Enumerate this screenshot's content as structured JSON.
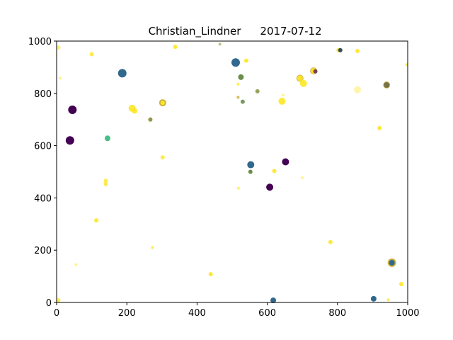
{
  "chart_data": {
    "type": "scatter",
    "title_name": "Christian_Lindner",
    "title_date": "2017-07-12",
    "xlabel": "",
    "ylabel": "",
    "xlim": [
      0,
      1000
    ],
    "ylim": [
      0,
      1000
    ],
    "xticks": [
      "0",
      "200",
      "400",
      "600",
      "800",
      "1000"
    ],
    "yticks": [
      "0",
      "200",
      "400",
      "600",
      "800",
      "1000"
    ],
    "grid": false,
    "points": [
      {
        "x": 5,
        "y": 975,
        "size": 3,
        "color": "#fde725",
        "alpha": 0.6
      },
      {
        "x": 10,
        "y": 858,
        "size": 2,
        "color": "#fde725",
        "alpha": 0.5
      },
      {
        "x": 45,
        "y": 737,
        "size": 6,
        "color": "#440154",
        "alpha": 1
      },
      {
        "x": 38,
        "y": 620,
        "size": 6,
        "color": "#440154",
        "alpha": 1
      },
      {
        "x": 100,
        "y": 950,
        "size": 3,
        "color": "#fde725",
        "alpha": 0.8
      },
      {
        "x": 145,
        "y": 628,
        "size": 4,
        "color": "#35b779",
        "alpha": 0.9
      },
      {
        "x": 140,
        "y": 465,
        "size": 3,
        "color": "#fde725",
        "alpha": 0.8
      },
      {
        "x": 140,
        "y": 453,
        "size": 3,
        "color": "#fde725",
        "alpha": 0.8
      },
      {
        "x": 113,
        "y": 314,
        "size": 3,
        "color": "#fde725",
        "alpha": 0.9
      },
      {
        "x": 55,
        "y": 145,
        "size": 2,
        "color": "#fde725",
        "alpha": 0.5
      },
      {
        "x": 5,
        "y": 8,
        "size": 3,
        "color": "#fde725",
        "alpha": 0.8
      },
      {
        "x": 187,
        "y": 877,
        "size": 6,
        "color": "#31688e",
        "alpha": 1
      },
      {
        "x": 215,
        "y": 743,
        "size": 5,
        "color": "#fde725",
        "alpha": 0.9
      },
      {
        "x": 222,
        "y": 733,
        "size": 4,
        "color": "#fde725",
        "alpha": 0.9
      },
      {
        "x": 267,
        "y": 700,
        "size": 3,
        "color": "#8a8a3a",
        "alpha": 0.9
      },
      {
        "x": 302,
        "y": 764,
        "size": 5,
        "color": "#c8a82a",
        "alpha": 0.9
      },
      {
        "x": 302,
        "y": 764,
        "size": 3,
        "color": "#fde725",
        "alpha": 1
      },
      {
        "x": 302,
        "y": 555,
        "size": 3,
        "color": "#fde725",
        "alpha": 0.8
      },
      {
        "x": 273,
        "y": 210,
        "size": 2,
        "color": "#fde725",
        "alpha": 0.8
      },
      {
        "x": 338,
        "y": 978,
        "size": 3,
        "color": "#fde725",
        "alpha": 0.9
      },
      {
        "x": 465,
        "y": 988,
        "size": 2,
        "color": "#a8a84a",
        "alpha": 0.7
      },
      {
        "x": 510,
        "y": 918,
        "size": 6,
        "color": "#31688e",
        "alpha": 1
      },
      {
        "x": 540,
        "y": 925,
        "size": 3,
        "color": "#fde725",
        "alpha": 0.9
      },
      {
        "x": 525,
        "y": 862,
        "size": 4,
        "color": "#6b8e4e",
        "alpha": 1
      },
      {
        "x": 517,
        "y": 835,
        "size": 2,
        "color": "#fde725",
        "alpha": 0.8
      },
      {
        "x": 517,
        "y": 785,
        "size": 2,
        "color": "#c8a82a",
        "alpha": 0.8
      },
      {
        "x": 530,
        "y": 768,
        "size": 3,
        "color": "#6b8e4e",
        "alpha": 0.9
      },
      {
        "x": 572,
        "y": 808,
        "size": 3,
        "color": "#8a9a4a",
        "alpha": 0.9
      },
      {
        "x": 553,
        "y": 527,
        "size": 5,
        "color": "#31688e",
        "alpha": 1
      },
      {
        "x": 552,
        "y": 500,
        "size": 3,
        "color": "#6b8e4e",
        "alpha": 1
      },
      {
        "x": 518,
        "y": 437,
        "size": 2,
        "color": "#fde725",
        "alpha": 0.6
      },
      {
        "x": 439,
        "y": 108,
        "size": 3,
        "color": "#fde725",
        "alpha": 0.9
      },
      {
        "x": 607,
        "y": 441,
        "size": 5,
        "color": "#440154",
        "alpha": 1
      },
      {
        "x": 652,
        "y": 538,
        "size": 5,
        "color": "#440154",
        "alpha": 1
      },
      {
        "x": 620,
        "y": 503,
        "size": 3,
        "color": "#fde725",
        "alpha": 0.9
      },
      {
        "x": 642,
        "y": 770,
        "size": 5,
        "color": "#fde725",
        "alpha": 0.9
      },
      {
        "x": 645,
        "y": 793,
        "size": 2,
        "color": "#fde725",
        "alpha": 0.5
      },
      {
        "x": 693,
        "y": 858,
        "size": 5,
        "color": "#c8a82a",
        "alpha": 0.8
      },
      {
        "x": 693,
        "y": 858,
        "size": 4,
        "color": "#fde725",
        "alpha": 0.9
      },
      {
        "x": 703,
        "y": 838,
        "size": 5,
        "color": "#fde725",
        "alpha": 0.9
      },
      {
        "x": 732,
        "y": 886,
        "size": 5,
        "color": "#c8a82a",
        "alpha": 0.8
      },
      {
        "x": 732,
        "y": 886,
        "size": 4,
        "color": "#fde725",
        "alpha": 0.9
      },
      {
        "x": 737,
        "y": 884,
        "size": 3,
        "color": "#440154",
        "alpha": 0.7
      },
      {
        "x": 700,
        "y": 477,
        "size": 2,
        "color": "#fde725",
        "alpha": 0.5
      },
      {
        "x": 617,
        "y": 8,
        "size": 4,
        "color": "#31688e",
        "alpha": 1
      },
      {
        "x": 780,
        "y": 231,
        "size": 3,
        "color": "#fde725",
        "alpha": 0.9
      },
      {
        "x": 803,
        "y": 965,
        "size": 3,
        "color": "#fde725",
        "alpha": 0.9
      },
      {
        "x": 808,
        "y": 965,
        "size": 3,
        "color": "#1f3a4d",
        "alpha": 0.9
      },
      {
        "x": 857,
        "y": 962,
        "size": 3,
        "color": "#fde725",
        "alpha": 0.9
      },
      {
        "x": 857,
        "y": 814,
        "size": 5,
        "color": "#fde725",
        "alpha": 0.4
      },
      {
        "x": 920,
        "y": 667,
        "size": 3,
        "color": "#fde725",
        "alpha": 0.9
      },
      {
        "x": 940,
        "y": 832,
        "size": 5,
        "color": "#c8a82a",
        "alpha": 0.8
      },
      {
        "x": 940,
        "y": 832,
        "size": 4,
        "color": "#6b6b4a",
        "alpha": 0.9
      },
      {
        "x": 997,
        "y": 910,
        "size": 2,
        "color": "#fde725",
        "alpha": 0.8
      },
      {
        "x": 955,
        "y": 152,
        "size": 6,
        "color": "#c8a82a",
        "alpha": 0.9
      },
      {
        "x": 955,
        "y": 152,
        "size": 4,
        "color": "#31688e",
        "alpha": 1
      },
      {
        "x": 903,
        "y": 14,
        "size": 4,
        "color": "#31688e",
        "alpha": 1
      },
      {
        "x": 945,
        "y": 10,
        "size": 2,
        "color": "#fde725",
        "alpha": 0.8
      },
      {
        "x": 982,
        "y": 70,
        "size": 3,
        "color": "#fde725",
        "alpha": 0.9
      }
    ]
  }
}
